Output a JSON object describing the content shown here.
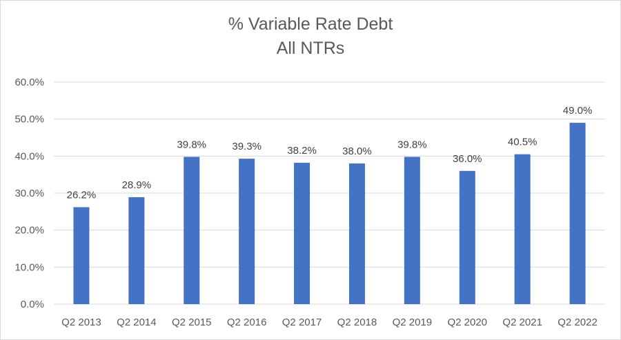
{
  "chart_data": {
    "type": "bar",
    "title": "% Variable Rate Debt",
    "subtitle": "All NTRs",
    "xlabel": "",
    "ylabel": "",
    "categories": [
      "Q2 2013",
      "Q2 2014",
      "Q2 2015",
      "Q2 2016",
      "Q2 2017",
      "Q2 2018",
      "Q2 2019",
      "Q2 2020",
      "Q2 2021",
      "Q2 2022"
    ],
    "values": [
      26.2,
      28.9,
      39.8,
      39.3,
      38.2,
      38.0,
      39.8,
      36.0,
      40.5,
      49.0
    ],
    "data_labels": [
      "26.2%",
      "28.9%",
      "39.8%",
      "39.3%",
      "38.2%",
      "38.0%",
      "39.8%",
      "36.0%",
      "40.5%",
      "49.0%"
    ],
    "ylim": [
      0,
      60
    ],
    "yticks": [
      0,
      10,
      20,
      30,
      40,
      50,
      60
    ],
    "ytick_labels": [
      "0.0%",
      "10.0%",
      "20.0%",
      "30.0%",
      "40.0%",
      "50.0%",
      "60.0%"
    ],
    "grid": true,
    "legend": "none",
    "colors": {
      "bar": "#4472C4",
      "grid": "#D9D9D9",
      "text": "#595959",
      "data_label": "#404040"
    }
  }
}
